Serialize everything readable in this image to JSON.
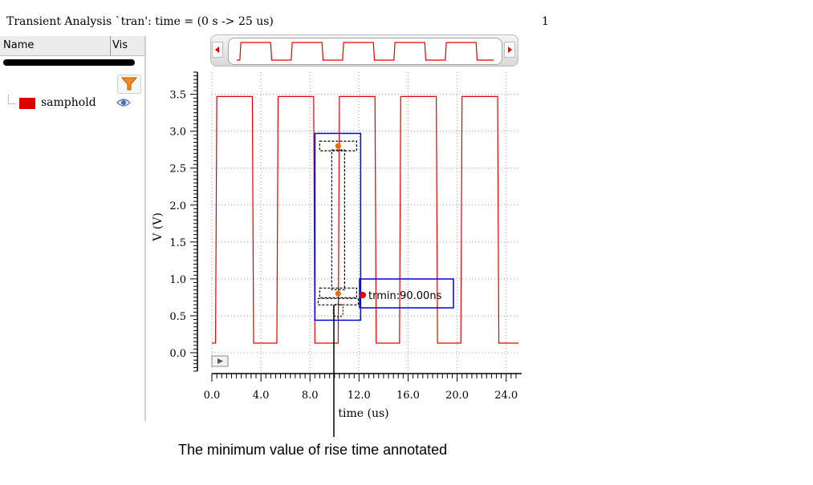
{
  "window": {
    "title": "Transient Analysis `tran': time = (0 s -> 25 us)",
    "page_number": "1"
  },
  "signal_panel": {
    "col_name": "Name",
    "col_vis": "Vis",
    "signals": [
      {
        "label": "samphold",
        "color": "#e00000",
        "visible_icon": "eye-icon"
      }
    ],
    "filter_icon": "funnel-icon"
  },
  "caption": "The minimum value of rise time annotated",
  "chart_data": {
    "type": "line",
    "xlabel": "time (us)",
    "ylabel": "V (V)",
    "xlim": [
      0,
      25
    ],
    "ylim": [
      -0.25,
      3.8
    ],
    "x_ticks": [
      0,
      4,
      8,
      12,
      16,
      20,
      24
    ],
    "x_tick_labels": [
      "0.0",
      "4.0",
      "8.0",
      "12.0",
      "16.0",
      "20.0",
      "24.0"
    ],
    "y_ticks": [
      0,
      0.5,
      1,
      1.5,
      2,
      2.5,
      3,
      3.5
    ],
    "y_tick_labels": [
      "0.0",
      "0.5",
      "1.0",
      "1.5",
      "2.0",
      "2.5",
      "3.0",
      "3.5"
    ],
    "grid": true,
    "series": [
      {
        "color": "#e00000",
        "x": [
          0,
          0.3,
          0.4,
          3.3,
          3.4,
          5.3,
          5.4,
          8.3,
          8.4,
          10.3,
          10.4,
          13.3,
          13.4,
          15.3,
          15.4,
          18.3,
          18.4,
          20.3,
          20.4,
          23.3,
          23.4,
          25
        ],
        "y": [
          0.13,
          0.13,
          3.47,
          3.47,
          0.13,
          0.13,
          3.47,
          3.47,
          0.13,
          0.13,
          3.47,
          3.47,
          0.13,
          0.13,
          3.47,
          3.47,
          0.13,
          0.13,
          3.47,
          3.47,
          0.13,
          0.13
        ]
      }
    ],
    "annotation": {
      "label": "trmin:90.00ns",
      "marker_x": 10.3,
      "marker_upper_y": 2.8,
      "marker_lower_y": 0.8
    },
    "accent_color": "#0000e0"
  }
}
